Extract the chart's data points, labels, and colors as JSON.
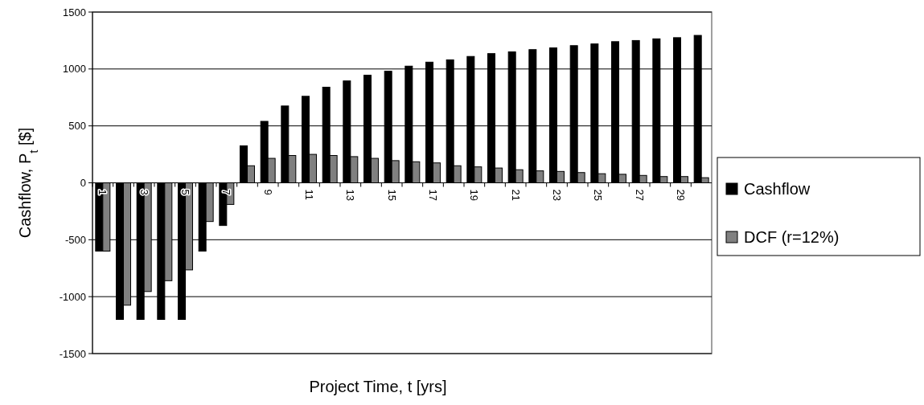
{
  "chart_data": {
    "type": "bar",
    "xlabel": "Project Time, t [yrs]",
    "ylabel": "Cashflow, P$_{t}$ [$]",
    "categories": [
      "1",
      null,
      "3",
      null,
      "5",
      null,
      "7",
      null,
      "9",
      null,
      "11",
      null,
      "13",
      null,
      "15",
      null,
      "17",
      null,
      "19",
      null,
      "21",
      null,
      "23",
      null,
      "25",
      null,
      "27",
      null,
      "29",
      null
    ],
    "series": [
      {
        "name": "Cashflow",
        "color": "#000000",
        "values": [
          -600,
          -1200,
          -1200,
          -1200,
          -1200,
          -600,
          -375,
          325,
          540,
          675,
          760,
          840,
          895,
          945,
          980,
          1025,
          1060,
          1080,
          1110,
          1135,
          1150,
          1170,
          1185,
          1205,
          1220,
          1240,
          1250,
          1265,
          1275,
          1295
        ]
      },
      {
        "name": "DCF (r=12%)",
        "color": "#808080",
        "values": [
          -600,
          -1075,
          -955,
          -860,
          -765,
          -340,
          -190,
          150,
          215,
          240,
          250,
          240,
          230,
          215,
          195,
          185,
          175,
          150,
          140,
          130,
          115,
          105,
          100,
          90,
          80,
          75,
          65,
          55,
          55,
          45
        ]
      }
    ],
    "ylim": [
      -1500,
      1500
    ],
    "yticks": [
      -1500,
      -1000,
      -500,
      0,
      500,
      1000,
      1500
    ],
    "grid": "y",
    "legend": "right"
  }
}
